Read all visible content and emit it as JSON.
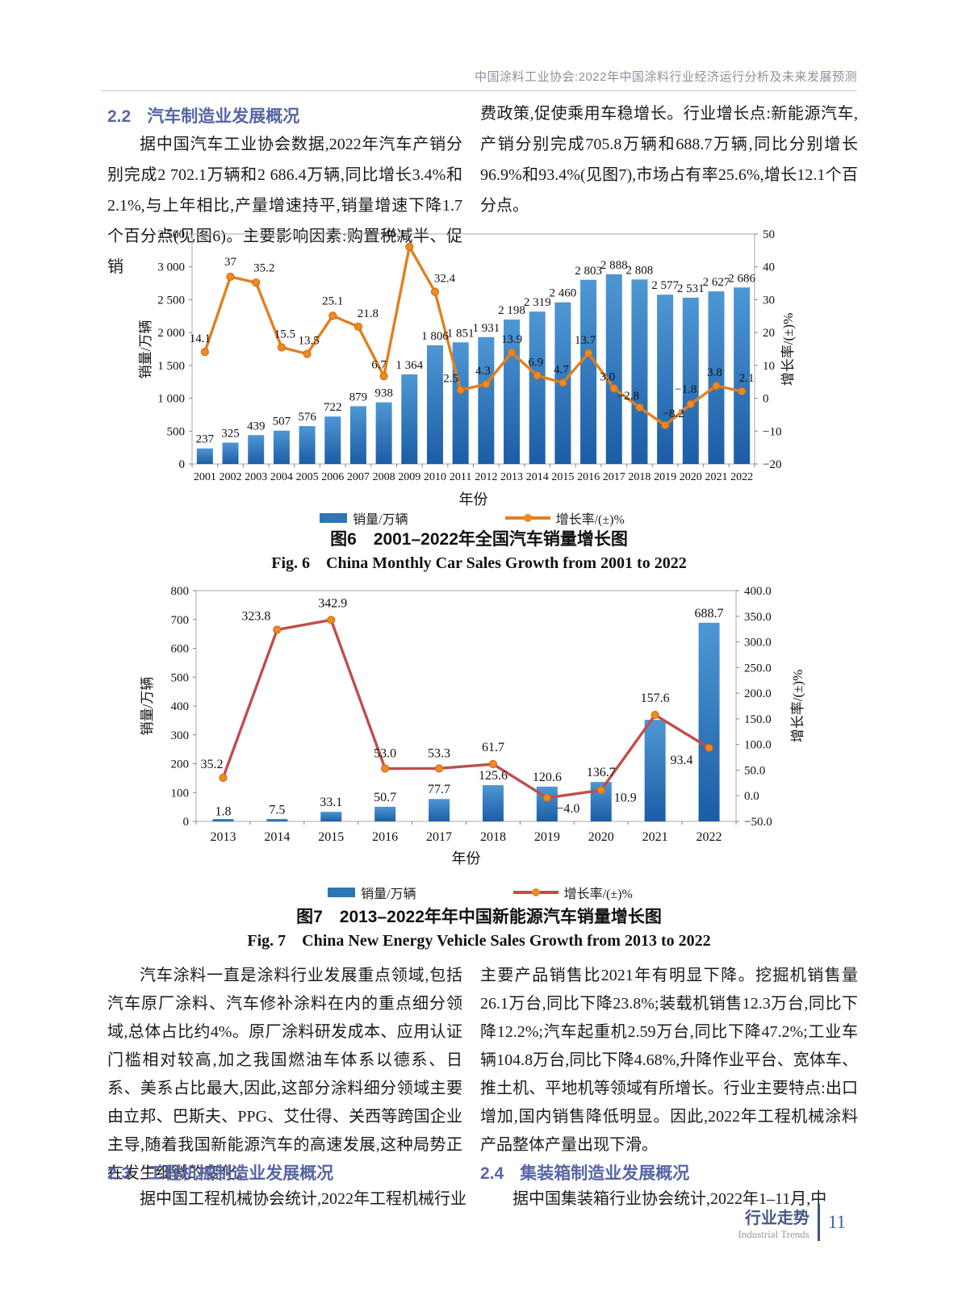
{
  "page": {
    "header": "中国涂料工业协会:2022年中国涂料行业经济运行分析及未来发展预测",
    "footer": {
      "cn": "行业走势",
      "en": "Industrial Trends",
      "page_number": "11"
    }
  },
  "sections": {
    "s22": {
      "number": "2.2",
      "title": "汽车制造业发展概况"
    },
    "s23": {
      "number": "2.3",
      "title": "工程机械制造业发展概况"
    },
    "s24": {
      "number": "2.4",
      "title": "集装箱制造业发展概况"
    }
  },
  "paragraphs": {
    "p1_left": "据中国汽车工业协会数据,2022年汽车产销分别完成2 702.1万辆和2 686.4万辆,同比增长3.4%和2.1%,与上年相比,产量增速持平,销量增速下降1.7个百分点(见图6)。主要影响因素:购置税减半、促销",
    "p1_right": "费政策,促使乘用车稳增长。行业增长点:新能源汽车,产销分别完成705.8万辆和688.7万辆,同比分别增长96.9%和93.4%(见图7),市场占有率25.6%,增长12.1个百分点。",
    "p2_left": "汽车涂料一直是涂料行业发展重点领域,包括汽车原厂涂料、汽车修补涂料在内的重点细分领域,总体占比约4%。原厂涂料研发成本、应用认证门槛相对较高,加之我国燃油车体系以德系、日系、美系占比最大,因此,这部分涂料细分领域主要由立邦、巴斯夫、PPG、艾仕得、关西等跨国企业主导,随着我国新能源汽车的高速发展,这种局势正在发生细微的变化。",
    "p23_line": "据中国工程机械协会统计,2022年工程机械行业",
    "p2_right": "主要产品销售比2021年有明显下降。挖掘机销售量26.1万台,同比下降23.8%;装载机销售12.3万台,同比下降12.2%;汽车起重机2.59万台,同比下降47.2%;工业车辆104.8万台,同比下降4.68%,升降作业平台、宽体车、推土机、平地机等领域有所增长。行业主要特点:出口增加,国内销售降低明显。因此,2022年工程机械涂料产品整体产量出现下滑。",
    "p24_line": "据中国集装箱行业协会统计,2022年1–11月,中"
  },
  "chart_data": [
    {
      "id": "fig6",
      "type": "bar",
      "title": "图6 2001–2022年全国汽车销量增长图",
      "categories": [
        "2001",
        "2002",
        "2003",
        "2004",
        "2005",
        "2006",
        "2007",
        "2008",
        "2009",
        "2010",
        "2011",
        "2012",
        "2013",
        "2014",
        "2015",
        "2016",
        "2017",
        "2018",
        "2019",
        "2020",
        "2021",
        "2022"
      ],
      "series": [
        {
          "name": "销量/万辆",
          "type": "bar",
          "axis": "left",
          "values": [
            237,
            325,
            439,
            507,
            576,
            722,
            879,
            938,
            1364,
            1806,
            1851,
            1931,
            2198,
            2319,
            2460,
            2803,
            2888,
            2808,
            2577,
            2531,
            2627,
            2686
          ],
          "labels": [
            "237",
            "325",
            "439",
            "507",
            "576",
            "722",
            "879",
            "938",
            "1 364",
            "1 806",
            "1 851",
            "1 931",
            "2 198",
            "2 319",
            "2 460",
            "2 803",
            "2 888",
            "2 808",
            "2 577",
            "2 531",
            "2 627",
            "2 686"
          ]
        },
        {
          "name": "增长率/(±)%",
          "type": "line",
          "axis": "right",
          "values": [
            14.1,
            37,
            35.2,
            15.5,
            13.5,
            25.1,
            21.8,
            6.7,
            46.1,
            32.4,
            2.5,
            4.3,
            13.9,
            6.9,
            4.7,
            13.7,
            3.0,
            -2.8,
            -8.2,
            -1.8,
            3.8,
            2.1
          ],
          "labels": [
            "14.1",
            "37",
            "35.2",
            "15.5",
            "13.5",
            "25.1",
            "21.8",
            "6.7",
            "46.1",
            "32.4",
            "2.5",
            "4.3",
            "13.9",
            "6.9",
            "4.7",
            "13.7",
            "3.0",
            "−2.8",
            "−8.2",
            "−1.8",
            "3.8",
            "2.1"
          ]
        }
      ],
      "left_axis": {
        "title": "销量/万辆",
        "min": 0,
        "max": 3500,
        "step": 500,
        "tick_labels": [
          "3 500",
          "3 000",
          "2 500",
          "2 000",
          "1 500",
          "1 000",
          "500",
          "0"
        ]
      },
      "right_axis": {
        "title": "增长率/(±)%",
        "min": -20,
        "max": 50,
        "step": 10,
        "tick_labels": [
          "50",
          "40",
          "30",
          "20",
          "10",
          "0",
          "−10",
          "−20"
        ]
      },
      "xlabel": "年份",
      "legend": [
        "销量/万辆",
        "增长率/(±)%"
      ],
      "legend_position": "bottom",
      "grid": false,
      "caption_cn": "图6　2001–2022年全国汽车销量增长图",
      "caption_en": "Fig. 6　China Monthly Car Sales Growth from 2001 to 2022",
      "colors": {
        "bar_top": "#4e97d4",
        "bar_bottom": "#1b5da6",
        "legend_bar": "#2e75b6",
        "line": "#e0801f",
        "marker": "#ed8a24",
        "marker_stroke": "#c96a14"
      }
    },
    {
      "id": "fig7",
      "type": "bar",
      "title": "图7 2013–2022年年中国新能源汽车销量增长图",
      "categories": [
        "2013",
        "2014",
        "2015",
        "2016",
        "2017",
        "2018",
        "2019",
        "2020",
        "2021",
        "2022"
      ],
      "series": [
        {
          "name": "销量/万辆",
          "type": "bar",
          "axis": "left",
          "values": [
            1.8,
            7.5,
            33.1,
            50.7,
            77.7,
            125.6,
            120.6,
            136.7,
            352,
            688.7
          ],
          "labels": [
            "1.8",
            "7.5",
            "33.1",
            "50.7",
            "77.7",
            "125.6",
            "120.6",
            "136.7",
            "",
            "688.7"
          ]
        },
        {
          "name": "增长率/(±)%",
          "type": "line",
          "axis": "right",
          "values": [
            35.2,
            323.8,
            342.9,
            53.0,
            53.3,
            61.7,
            -4.0,
            10.9,
            157.6,
            93.4
          ],
          "labels": [
            "35.2",
            "323.8",
            "342.9",
            "53.0",
            "53.3",
            "61.7",
            "−4.0",
            "10.9",
            "157.6",
            "93.4"
          ]
        }
      ],
      "left_axis": {
        "title": "销量/万辆",
        "min": 0,
        "max": 800,
        "step": 100,
        "tick_labels": [
          "800",
          "700",
          "600",
          "500",
          "400",
          "300",
          "200",
          "100",
          "0"
        ]
      },
      "right_axis": {
        "title": "增长率/(±)%",
        "min": -50,
        "max": 400,
        "step": 50,
        "tick_labels": [
          "400.0",
          "350.0",
          "300.0",
          "250.0",
          "200.0",
          "150.0",
          "100.0",
          "50.0",
          "0.0",
          "−50.0"
        ]
      },
      "xlabel": "年份",
      "legend": [
        "销量/万辆",
        "增长率/(±)%"
      ],
      "legend_position": "bottom",
      "grid": false,
      "caption_cn": "图7　2013–2022年年中国新能源汽车销量增长图",
      "caption_en": "Fig. 7　China New Energy Vehicle Sales Growth from 2013 to 2022",
      "colors": {
        "bar_top": "#4e97d4",
        "bar_bottom": "#1b5da6",
        "legend_bar": "#2e75b6",
        "line": "#bf4e4c",
        "marker": "#ed8a24",
        "marker_stroke": "#c96a14"
      }
    }
  ]
}
